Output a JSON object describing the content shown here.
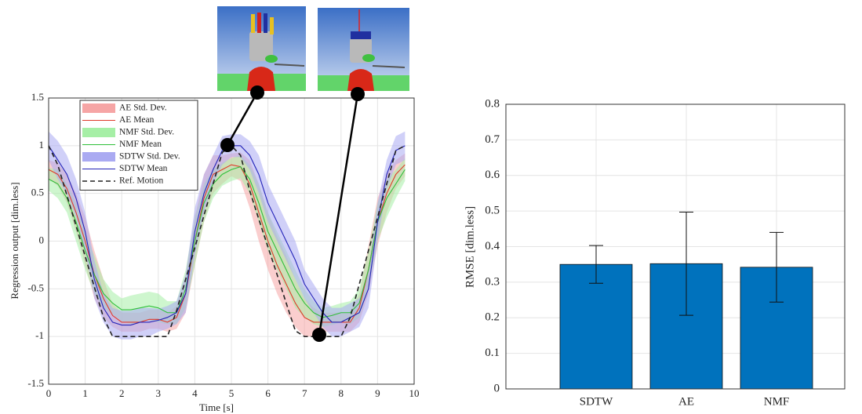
{
  "chart_data": [
    {
      "type": "line",
      "xlabel": "Time [s]",
      "ylabel": "Regression output [dim.less]",
      "x": [
        0,
        0.25,
        0.5,
        0.75,
        1,
        1.25,
        1.5,
        1.75,
        2,
        2.25,
        2.5,
        2.75,
        3,
        3.25,
        3.5,
        3.75,
        4,
        4.25,
        4.5,
        4.75,
        5,
        5.25,
        5.5,
        5.75,
        6,
        6.25,
        6.5,
        6.75,
        7,
        7.25,
        7.5,
        7.75,
        8,
        8.25,
        8.5,
        8.75,
        9,
        9.25,
        9.5,
        9.75
      ],
      "xlim": [
        0,
        10
      ],
      "xticks": [
        0,
        1,
        2,
        3,
        4,
        5,
        6,
        7,
        8,
        9,
        10
      ],
      "ylim": [
        -1.5,
        1.5
      ],
      "yticks": [
        -1.5,
        -1,
        -0.5,
        0,
        0.5,
        1,
        1.5
      ],
      "grid": true,
      "legend": "upper-left",
      "series": [
        {
          "name": "AE Std. Dev.",
          "style": "band",
          "color": "#f6a5a5",
          "values": [
            0.1,
            0.12,
            0.15,
            0.2,
            0.25,
            0.25,
            0.2,
            0.12,
            0.1,
            0.1,
            0.1,
            0.1,
            0.1,
            0.1,
            0.12,
            0.2,
            0.25,
            0.25,
            0.2,
            0.15,
            0.12,
            0.15,
            0.25,
            0.3,
            0.3,
            0.3,
            0.3,
            0.25,
            0.2,
            0.15,
            0.1,
            0.1,
            0.1,
            0.1,
            0.15,
            0.25,
            0.25,
            0.2,
            0.15,
            0.12
          ]
        },
        {
          "name": "AE Mean",
          "style": "line",
          "color": "#e03a2a",
          "values": [
            0.75,
            0.7,
            0.55,
            0.3,
            0,
            -0.35,
            -0.6,
            -0.78,
            -0.85,
            -0.85,
            -0.85,
            -0.82,
            -0.82,
            -0.85,
            -0.8,
            -0.55,
            0,
            0.45,
            0.7,
            0.75,
            0.8,
            0.78,
            0.6,
            0.3,
            0,
            -0.25,
            -0.45,
            -0.65,
            -0.8,
            -0.85,
            -0.85,
            -0.85,
            -0.85,
            -0.85,
            -0.7,
            -0.3,
            0.2,
            0.5,
            0.7,
            0.8
          ]
        },
        {
          "name": "NMF Std. Dev.",
          "style": "band",
          "color": "#a6efa6",
          "values": [
            0.12,
            0.15,
            0.15,
            0.2,
            0.2,
            0.2,
            0.15,
            0.12,
            0.12,
            0.15,
            0.15,
            0.15,
            0.15,
            0.12,
            0.12,
            0.2,
            0.25,
            0.2,
            0.15,
            0.12,
            0.12,
            0.12,
            0.15,
            0.2,
            0.2,
            0.2,
            0.2,
            0.2,
            0.15,
            0.12,
            0.1,
            0.1,
            0.1,
            0.12,
            0.15,
            0.2,
            0.2,
            0.2,
            0.15,
            0.12
          ]
        },
        {
          "name": "NMF Mean",
          "style": "line",
          "color": "#2fbf3a",
          "values": [
            0.65,
            0.6,
            0.45,
            0.2,
            -0.1,
            -0.35,
            -0.55,
            -0.65,
            -0.72,
            -0.72,
            -0.7,
            -0.68,
            -0.7,
            -0.75,
            -0.75,
            -0.5,
            0,
            0.4,
            0.6,
            0.7,
            0.75,
            0.78,
            0.65,
            0.4,
            0.1,
            -0.1,
            -0.3,
            -0.5,
            -0.65,
            -0.75,
            -0.8,
            -0.78,
            -0.75,
            -0.75,
            -0.65,
            -0.3,
            0.2,
            0.45,
            0.6,
            0.75
          ]
        },
        {
          "name": "SDTW Std. Dev.",
          "style": "band",
          "color": "#aaaaf2",
          "values": [
            0.15,
            0.2,
            0.2,
            0.2,
            0.2,
            0.2,
            0.15,
            0.15,
            0.15,
            0.15,
            0.15,
            0.15,
            0.12,
            0.12,
            0.12,
            0.2,
            0.25,
            0.2,
            0.15,
            0.15,
            0.12,
            0.12,
            0.15,
            0.2,
            0.2,
            0.2,
            0.2,
            0.2,
            0.15,
            0.15,
            0.15,
            0.15,
            0.15,
            0.15,
            0.15,
            0.2,
            0.2,
            0.15,
            0.15,
            0.15
          ]
        },
        {
          "name": "SDTW Mean",
          "style": "line",
          "color": "#2323b8",
          "values": [
            1,
            0.85,
            0.7,
            0.45,
            0.1,
            -0.4,
            -0.7,
            -0.85,
            -0.88,
            -0.88,
            -0.85,
            -0.85,
            -0.83,
            -0.8,
            -0.75,
            -0.55,
            0.1,
            0.5,
            0.75,
            0.95,
            1,
            1,
            0.9,
            0.7,
            0.4,
            0.2,
            0,
            -0.2,
            -0.45,
            -0.6,
            -0.75,
            -0.85,
            -0.85,
            -0.8,
            -0.75,
            -0.5,
            0.2,
            0.7,
            0.95,
            1
          ]
        },
        {
          "name": "Ref. Motion",
          "style": "dashed",
          "color": "#222222",
          "values": [
            1,
            0.8,
            0.48,
            0.16,
            -0.16,
            -0.48,
            -0.8,
            -1,
            -1,
            -1,
            -1,
            -1,
            -1,
            -1,
            -0.73,
            -0.4,
            -0.07,
            0.27,
            0.6,
            0.93,
            1,
            0.9,
            0.53,
            0.23,
            -0.06,
            -0.35,
            -0.65,
            -0.94,
            -1,
            -1,
            -1,
            -1,
            -1,
            -0.8,
            -0.45,
            -0.1,
            0.25,
            0.6,
            0.95,
            1
          ]
        }
      ]
    },
    {
      "type": "bar",
      "ylabel": "RMSE [dim.less]",
      "categories": [
        "SDTW",
        "AE",
        "NMF"
      ],
      "values": [
        0.35,
        0.352,
        0.342
      ],
      "errors": [
        0.053,
        0.145,
        0.098
      ],
      "color": "#0072bd",
      "ylim": [
        0,
        0.8
      ],
      "yticks": [
        0,
        0.1,
        0.2,
        0.3,
        0.4,
        0.5,
        0.6,
        0.7,
        0.8
      ],
      "grid": true
    }
  ]
}
